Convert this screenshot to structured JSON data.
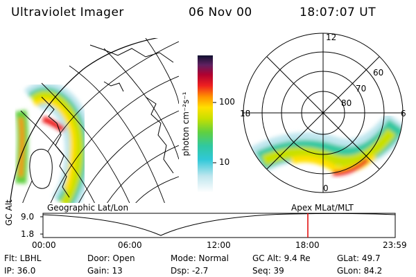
{
  "header": {
    "title": "Ultraviolet Imager",
    "date": "06 Nov 00",
    "time": "18:07:07 UT"
  },
  "colorbar": {
    "unit_label": "photon cm⁻²s⁻¹",
    "ticks": [
      "100",
      "10"
    ]
  },
  "polar_plot": {
    "mlt_labels": [
      "12",
      "18",
      "6",
      "0"
    ],
    "lat_labels": [
      "60",
      "70",
      "80"
    ]
  },
  "panels": {
    "left_label": "Geographic Lat/Lon",
    "right_label": "Apex MLat/MLT"
  },
  "timeline": {
    "y_label": "GC Alt",
    "y_ticks": [
      "9.0",
      "1.8"
    ],
    "x_ticks": [
      "00:00",
      "06:00",
      "12:00",
      "18:00",
      "23:59"
    ],
    "current_marker_time": "18:07"
  },
  "info": {
    "flt": "Flt: LBHL",
    "door": "Door: Open",
    "mode": "Mode: Normal",
    "gc_alt": "GC Alt: 9.4 Re",
    "glat": "GLat:  49.7",
    "ip": "IP: 36.0",
    "gain": "Gain: 13",
    "dsp": "Dsp:   -2.7",
    "seq": "Seq: 39",
    "glon": "GLon:  84.2"
  },
  "colors": {
    "marker": "#e00000",
    "grid": "#000000"
  }
}
